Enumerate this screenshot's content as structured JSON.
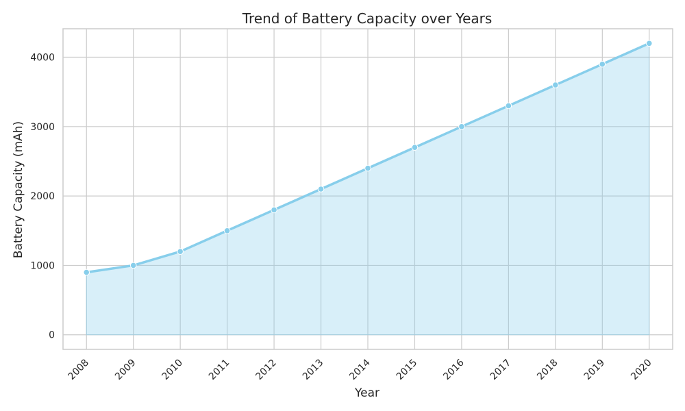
{
  "chart_data": {
    "type": "area",
    "title": "Trend of Battery Capacity over Years",
    "xlabel": "Year",
    "ylabel": "Battery Capacity (mAh)",
    "x": [
      "2008",
      "2009",
      "2010",
      "2011",
      "2012",
      "2013",
      "2014",
      "2015",
      "2016",
      "2017",
      "2018",
      "2019",
      "2020"
    ],
    "y": [
      900,
      1000,
      1200,
      1500,
      1800,
      2100,
      2400,
      2700,
      3000,
      3300,
      3600,
      3900,
      4200
    ],
    "yticks": [
      0,
      1000,
      2000,
      3000,
      4000
    ],
    "yticks_labels": [
      "0",
      "1000",
      "2000",
      "3000",
      "4000"
    ],
    "ylim": [
      -210,
      4410
    ],
    "grid": true,
    "xtick_rotation": 45,
    "colors": {
      "line": "#87CEEB",
      "fill": "#87CEEB",
      "marker": "#87CEEB",
      "grid": "#cccccc",
      "frame": "#cccccc",
      "text": "#262626"
    }
  }
}
